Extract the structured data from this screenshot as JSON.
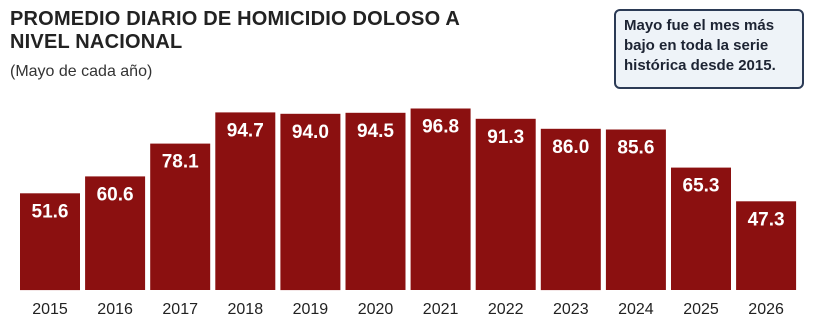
{
  "chart_data": {
    "type": "bar",
    "title": "PROMEDIO DIARIO DE HOMICIDIO DOLOSO A NIVEL NACIONAL",
    "subtitle": "(Mayo de cada año)",
    "annotation": "Mayo fue el mes más bajo en toda la serie histórica desde 2015.",
    "categories": [
      "2015",
      "2016",
      "2017",
      "2018",
      "2019",
      "2020",
      "2021",
      "2022",
      "2023",
      "2024",
      "2025",
      "2026"
    ],
    "values": [
      51.6,
      60.6,
      78.1,
      94.7,
      94.0,
      94.5,
      96.8,
      91.3,
      86.0,
      85.6,
      65.3,
      47.3
    ],
    "value_labels": [
      "51.6",
      "60.6",
      "78.1",
      "94.7",
      "94.0",
      "94.5",
      "96.8",
      "91.3",
      "86.0",
      "85.6",
      "65.3",
      "47.3"
    ],
    "xlabel": "",
    "ylabel": "",
    "ylim": [
      0,
      100
    ],
    "grid": false,
    "bar_color": "#8b1010",
    "label_color": "#ffffff"
  }
}
